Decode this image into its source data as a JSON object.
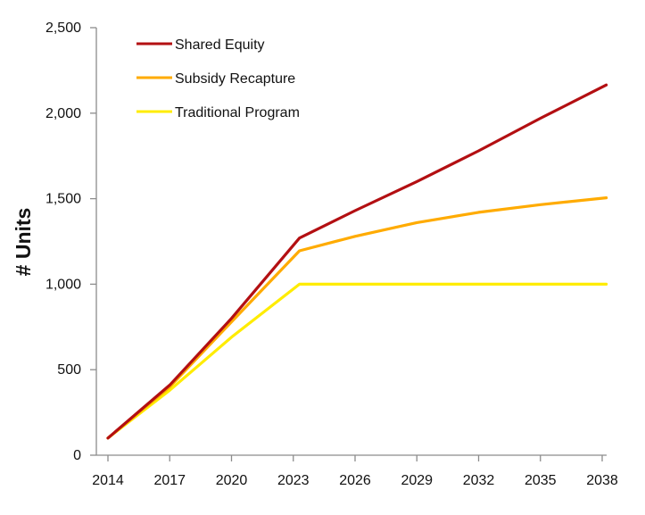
{
  "chart_data": {
    "type": "line",
    "title": "",
    "xlabel": "",
    "ylabel": "# Units",
    "x": [
      2014,
      2017,
      2020,
      2023,
      2026,
      2029,
      2032,
      2035,
      2038
    ],
    "x_tick_labels": [
      "2014",
      "2017",
      "2020",
      "2023",
      "2026",
      "2029",
      "2032",
      "2035",
      "2038"
    ],
    "y_tick_labels": [
      "0",
      "500",
      "1,000",
      "1,500",
      "2,000",
      "2,500"
    ],
    "y_ticks": [
      0,
      500,
      1000,
      1500,
      2000,
      2500
    ],
    "ylim": [
      0,
      2500
    ],
    "grid": false,
    "legend_position": "top-left",
    "series": [
      {
        "name": "Shared Equity",
        "color": "#b30f12",
        "points": [
          [
            2014,
            100
          ],
          [
            2017,
            410
          ],
          [
            2020,
            800
          ],
          [
            2023.3,
            1270
          ],
          [
            2026,
            1430
          ],
          [
            2029,
            1600
          ],
          [
            2032,
            1780
          ],
          [
            2035,
            1970
          ],
          [
            2038.2,
            2165
          ]
        ]
      },
      {
        "name": "Subsidy Recapture",
        "color": "#ffab00",
        "points": [
          [
            2014,
            100
          ],
          [
            2017,
            400
          ],
          [
            2020,
            780
          ],
          [
            2023.3,
            1195
          ],
          [
            2026,
            1280
          ],
          [
            2029,
            1360
          ],
          [
            2032,
            1420
          ],
          [
            2035,
            1465
          ],
          [
            2038.2,
            1505
          ]
        ]
      },
      {
        "name": "Traditional Program",
        "color": "#ffec00",
        "points": [
          [
            2014,
            100
          ],
          [
            2017,
            380
          ],
          [
            2020,
            690
          ],
          [
            2023.3,
            1000
          ],
          [
            2026,
            1000
          ],
          [
            2029,
            1000
          ],
          [
            2032,
            1000
          ],
          [
            2035,
            1000
          ],
          [
            2038.2,
            1000
          ]
        ]
      }
    ]
  }
}
